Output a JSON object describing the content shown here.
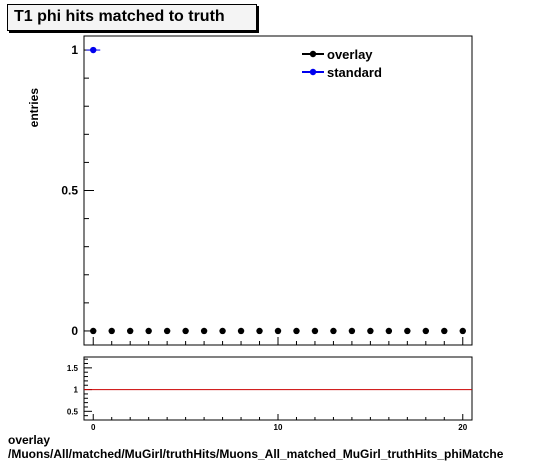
{
  "header": {
    "title": "T1 phi hits matched to truth"
  },
  "footer": {
    "line1": "overlay",
    "line2": "/Muons/All/matched/MuGirl/truthHits/Muons_All_matched_MuGirl_truthHits_phiMatche"
  },
  "colors": {
    "overlay": "#000000",
    "standard": "#0000ee",
    "ratio_line": "#cc0000"
  },
  "chart_data": [
    {
      "type": "scatter",
      "title": "T1 phi hits matched to truth",
      "xlabel": "",
      "ylabel": "entries",
      "xlim": [
        -0.5,
        20.5
      ],
      "ylim": [
        -0.05,
        1.05
      ],
      "yticks": [
        {
          "value": 0,
          "label": "0"
        },
        {
          "value": 0.5,
          "label": "0.5"
        },
        {
          "value": 1,
          "label": "1"
        }
      ],
      "legend": {
        "placement": "top-right",
        "entries": [
          "overlay",
          "standard"
        ]
      },
      "series": [
        {
          "name": "overlay",
          "marker": "circle",
          "color": "#000000",
          "x": [
            0,
            1,
            2,
            3,
            4,
            5,
            6,
            7,
            8,
            9,
            10,
            11,
            12,
            13,
            14,
            15,
            16,
            17,
            18,
            19,
            20
          ],
          "y": [
            0,
            0,
            0,
            0,
            0,
            0,
            0,
            0,
            0,
            0,
            0,
            0,
            0,
            0,
            0,
            0,
            0,
            0,
            0,
            0,
            0
          ]
        },
        {
          "name": "standard",
          "marker": "circle",
          "color": "#0000ee",
          "x": [
            0
          ],
          "y": [
            1
          ]
        }
      ]
    },
    {
      "type": "line",
      "xlim": [
        -0.5,
        20.5
      ],
      "ylim": [
        0.3,
        1.75
      ],
      "yticks": [
        {
          "value": 0.5,
          "label": "0.5"
        },
        {
          "value": 1,
          "label": "1"
        },
        {
          "value": 1.5,
          "label": "1.5"
        }
      ],
      "xticks": [
        {
          "value": 0,
          "label": "0"
        },
        {
          "value": 10,
          "label": "10"
        },
        {
          "value": 20,
          "label": "20"
        }
      ],
      "series": [
        {
          "name": "",
          "x": [
            -0.5,
            20.5
          ],
          "y": [
            1,
            1
          ],
          "color": "#cc0000"
        }
      ]
    }
  ]
}
